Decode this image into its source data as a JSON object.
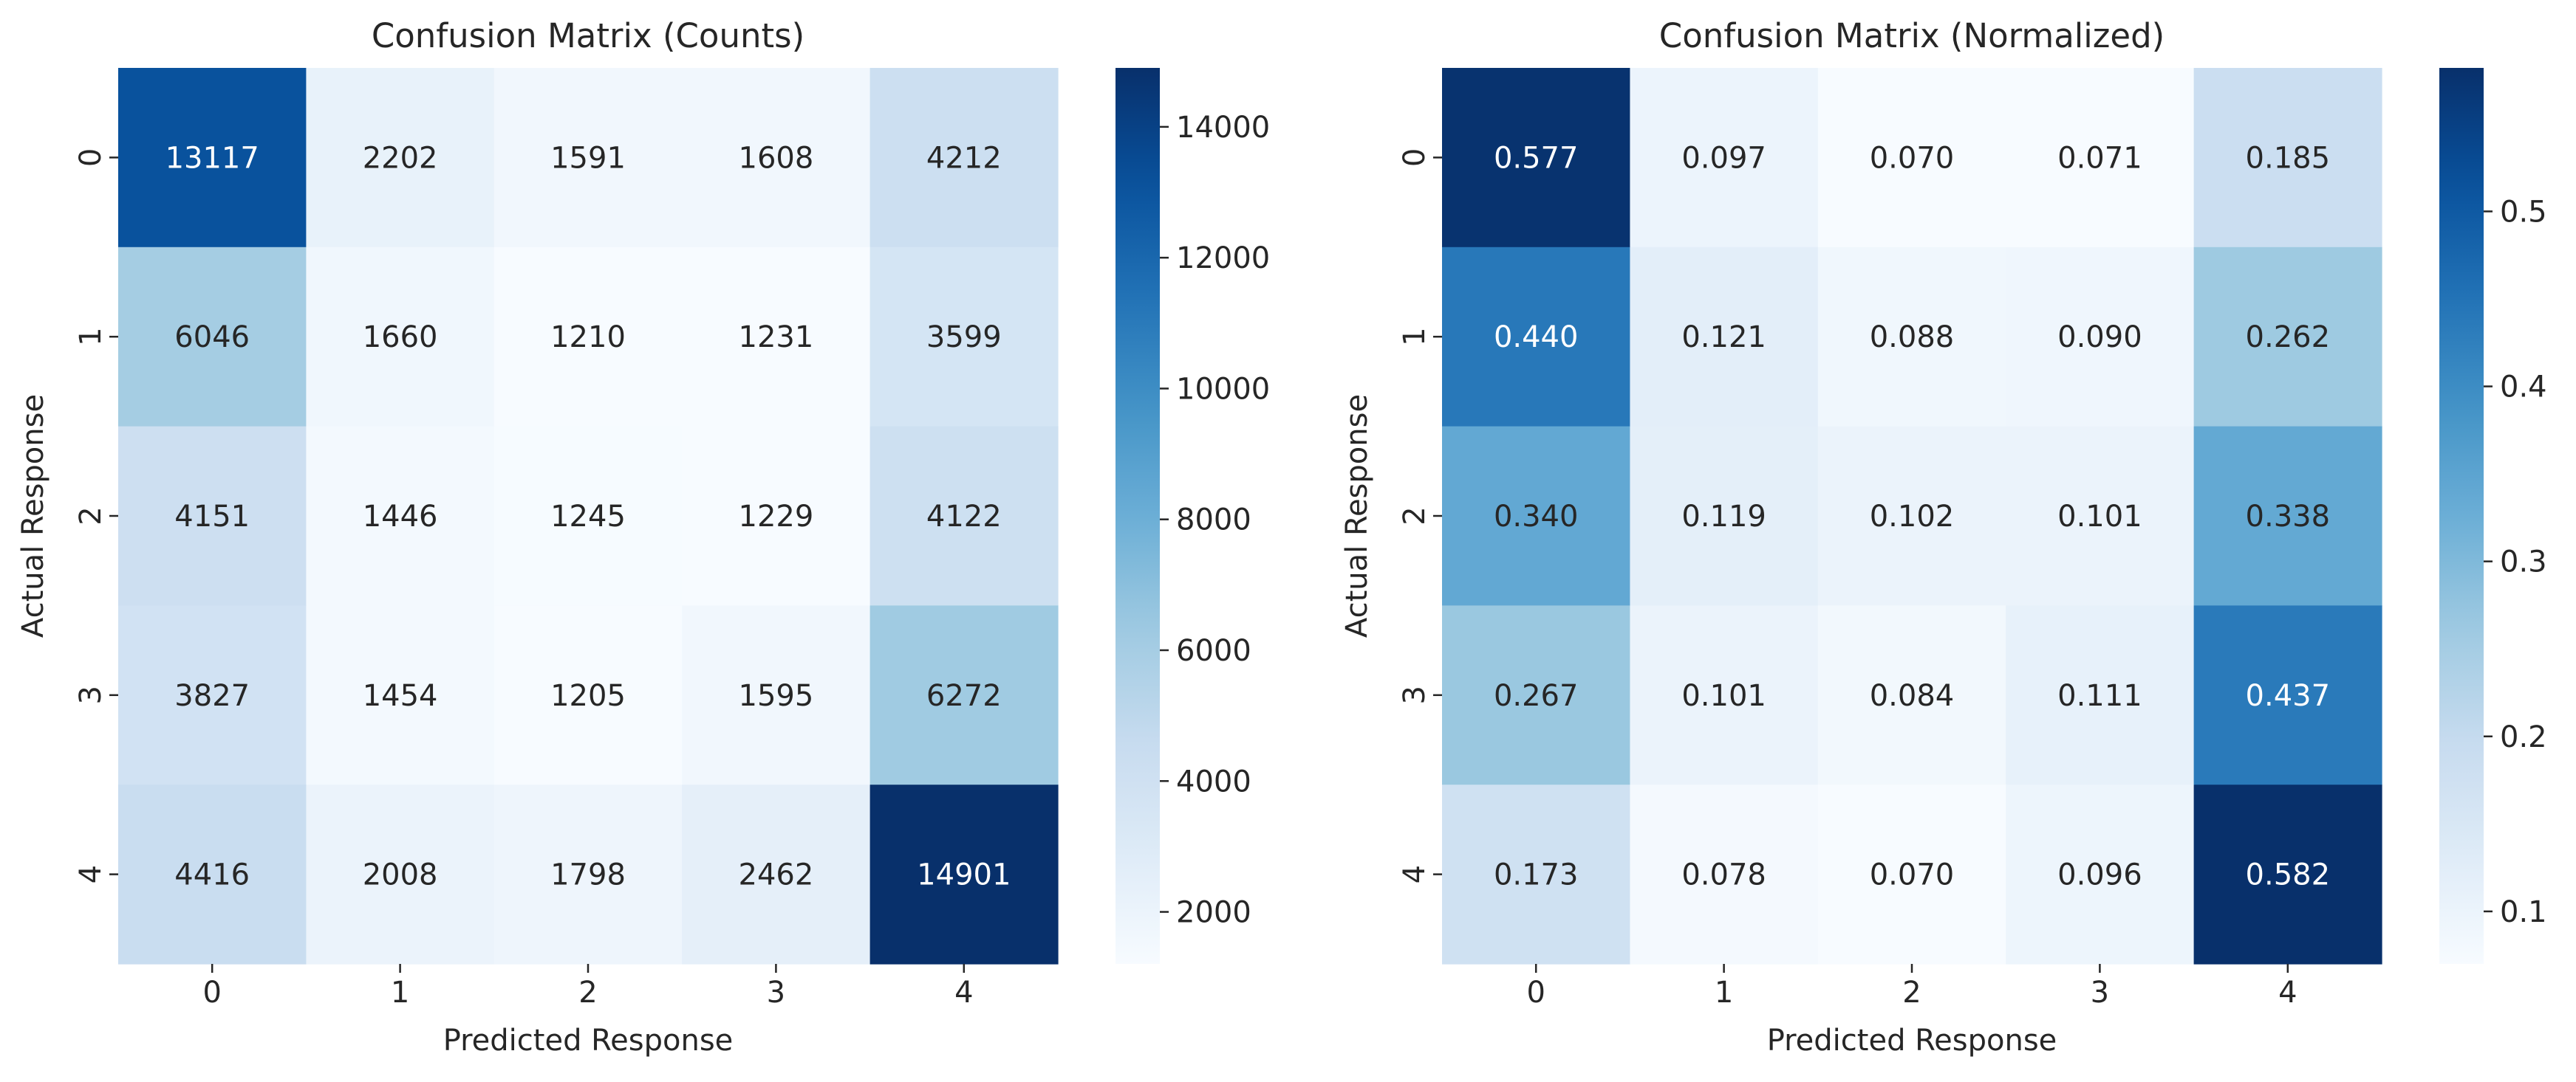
{
  "chart_data": [
    {
      "type": "heatmap",
      "title": "Confusion Matrix (Counts)",
      "xlabel": "Predicted Response",
      "ylabel": "Actual Response",
      "x_categories": [
        "0",
        "1",
        "2",
        "3",
        "4"
      ],
      "y_categories": [
        "0",
        "1",
        "2",
        "3",
        "4"
      ],
      "values": [
        [
          13117,
          2202,
          1591,
          1608,
          4212
        ],
        [
          6046,
          1660,
          1210,
          1231,
          3599
        ],
        [
          4151,
          1446,
          1245,
          1229,
          4122
        ],
        [
          3827,
          1454,
          1205,
          1595,
          6272
        ],
        [
          4416,
          2008,
          1798,
          2462,
          14901
        ]
      ],
      "cell_labels": [
        [
          "13117",
          "2202",
          "1591",
          "1608",
          "4212"
        ],
        [
          "6046",
          "1660",
          "1210",
          "1231",
          "3599"
        ],
        [
          "4151",
          "1446",
          "1245",
          "1229",
          "4122"
        ],
        [
          "3827",
          "1454",
          "1205",
          "1595",
          "6272"
        ],
        [
          "4416",
          "2008",
          "1798",
          "2462",
          "14901"
        ]
      ],
      "colorscale": "Blues",
      "vmin": 1205,
      "vmax": 14901,
      "colorbar_ticks": [
        2000,
        4000,
        6000,
        8000,
        10000,
        12000,
        14000
      ],
      "colorbar_tick_labels": [
        "2000",
        "4000",
        "6000",
        "8000",
        "10000",
        "12000",
        "14000"
      ]
    },
    {
      "type": "heatmap",
      "title": "Confusion Matrix (Normalized)",
      "xlabel": "Predicted Response",
      "ylabel": "Actual Response",
      "x_categories": [
        "0",
        "1",
        "2",
        "3",
        "4"
      ],
      "y_categories": [
        "0",
        "1",
        "2",
        "3",
        "4"
      ],
      "values": [
        [
          0.577,
          0.097,
          0.07,
          0.071,
          0.185
        ],
        [
          0.44,
          0.121,
          0.088,
          0.09,
          0.262
        ],
        [
          0.34,
          0.119,
          0.102,
          0.101,
          0.338
        ],
        [
          0.267,
          0.101,
          0.084,
          0.111,
          0.437
        ],
        [
          0.173,
          0.078,
          0.07,
          0.096,
          0.582
        ]
      ],
      "cell_labels": [
        [
          "0.577",
          "0.097",
          "0.070",
          "0.071",
          "0.185"
        ],
        [
          "0.440",
          "0.121",
          "0.088",
          "0.090",
          "0.262"
        ],
        [
          "0.340",
          "0.119",
          "0.102",
          "0.101",
          "0.338"
        ],
        [
          "0.267",
          "0.101",
          "0.084",
          "0.111",
          "0.437"
        ],
        [
          "0.173",
          "0.078",
          "0.070",
          "0.096",
          "0.582"
        ]
      ],
      "colorscale": "Blues",
      "vmin": 0.07,
      "vmax": 0.582,
      "colorbar_ticks": [
        0.1,
        0.2,
        0.3,
        0.4,
        0.5
      ],
      "colorbar_tick_labels": [
        "0.1",
        "0.2",
        "0.3",
        "0.4",
        "0.5"
      ]
    }
  ]
}
